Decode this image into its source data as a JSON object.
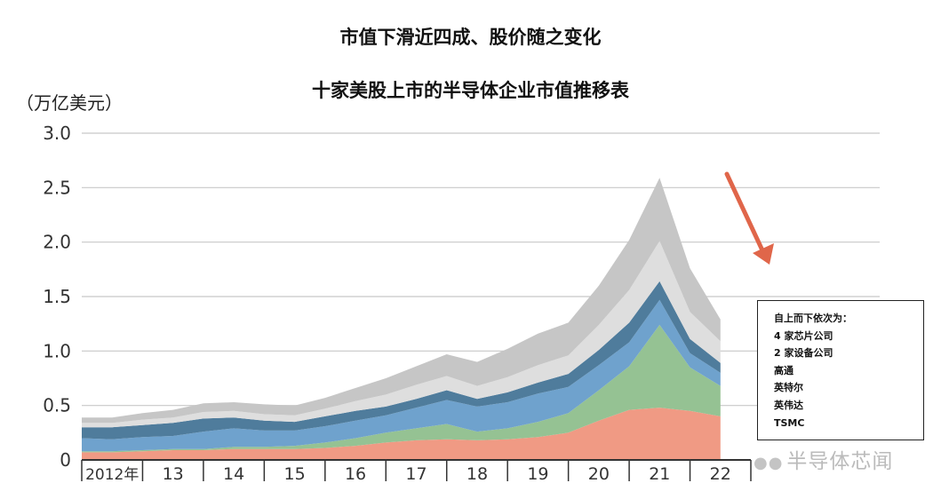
{
  "title": "市值下滑近四成、股价随之变化",
  "subtitle": "十家美股上市的半导体企业市值推移表",
  "unit_label": "（万亿美元）",
  "legend": {
    "heading": "自上而下依次为：",
    "items": [
      "4 家芯片公司",
      "2 家设备公司",
      "高通",
      "英特尔",
      "英伟达",
      "TSMC"
    ]
  },
  "watermark": "半导体芯闻",
  "colors": {
    "chips4": "#c6c6c6",
    "equip2": "#dedede",
    "qualcomm": "#4f7c9c",
    "intel": "#6fa2cd",
    "nvidia": "#95c293",
    "tsmc": "#f09a84",
    "arrow": "#e0664a",
    "grid": "#c8c8c8"
  },
  "chart_data": {
    "type": "area",
    "stacked": true,
    "ylabel": "（万亿美元）",
    "ylim": [
      0,
      3.0
    ],
    "yticks": [
      0,
      0.5,
      1.0,
      1.5,
      2.0,
      2.5,
      3.0
    ],
    "ytick_labels": [
      "0",
      "0.5",
      "1.0",
      "1.5",
      "2.0",
      "2.5",
      "3.0"
    ],
    "xtick_labels": [
      "2012年",
      "13",
      "14",
      "15",
      "16",
      "17",
      "18",
      "19",
      "20",
      "21",
      "22"
    ],
    "xlim": [
      2012,
      2023
    ],
    "grid": true,
    "x": [
      2012.0,
      2012.5,
      2013.0,
      2013.5,
      2014.0,
      2014.5,
      2015.0,
      2015.5,
      2016.0,
      2016.5,
      2017.0,
      2017.5,
      2018.0,
      2018.5,
      2019.0,
      2019.5,
      2020.0,
      2020.5,
      2021.0,
      2021.5,
      2022.0,
      2022.5
    ],
    "series": [
      {
        "name": "TSMC",
        "values": [
          0.07,
          0.07,
          0.08,
          0.09,
          0.09,
          0.1,
          0.1,
          0.1,
          0.11,
          0.13,
          0.16,
          0.18,
          0.19,
          0.18,
          0.19,
          0.21,
          0.25,
          0.36,
          0.46,
          0.48,
          0.45,
          0.4
        ]
      },
      {
        "name": "英伟达",
        "values": [
          0.01,
          0.01,
          0.01,
          0.01,
          0.01,
          0.02,
          0.02,
          0.03,
          0.05,
          0.07,
          0.09,
          0.11,
          0.14,
          0.08,
          0.1,
          0.14,
          0.18,
          0.28,
          0.4,
          0.76,
          0.4,
          0.28
        ]
      },
      {
        "name": "英特尔",
        "values": [
          0.12,
          0.11,
          0.12,
          0.12,
          0.16,
          0.17,
          0.15,
          0.14,
          0.15,
          0.16,
          0.16,
          0.19,
          0.22,
          0.23,
          0.24,
          0.26,
          0.24,
          0.23,
          0.22,
          0.23,
          0.13,
          0.12
        ]
      },
      {
        "name": "高通",
        "values": [
          0.1,
          0.11,
          0.11,
          0.12,
          0.12,
          0.1,
          0.09,
          0.08,
          0.09,
          0.09,
          0.08,
          0.08,
          0.09,
          0.07,
          0.09,
          0.1,
          0.12,
          0.14,
          0.18,
          0.17,
          0.13,
          0.09
        ]
      },
      {
        "name": "2 家设备公司",
        "values": [
          0.04,
          0.04,
          0.05,
          0.05,
          0.06,
          0.06,
          0.06,
          0.06,
          0.07,
          0.09,
          0.11,
          0.13,
          0.13,
          0.12,
          0.14,
          0.16,
          0.17,
          0.23,
          0.3,
          0.37,
          0.25,
          0.2
        ]
      },
      {
        "name": "4 家芯片公司",
        "values": [
          0.05,
          0.05,
          0.06,
          0.07,
          0.08,
          0.08,
          0.09,
          0.09,
          0.1,
          0.12,
          0.15,
          0.17,
          0.2,
          0.22,
          0.26,
          0.29,
          0.3,
          0.36,
          0.46,
          0.58,
          0.4,
          0.2
        ]
      }
    ]
  }
}
